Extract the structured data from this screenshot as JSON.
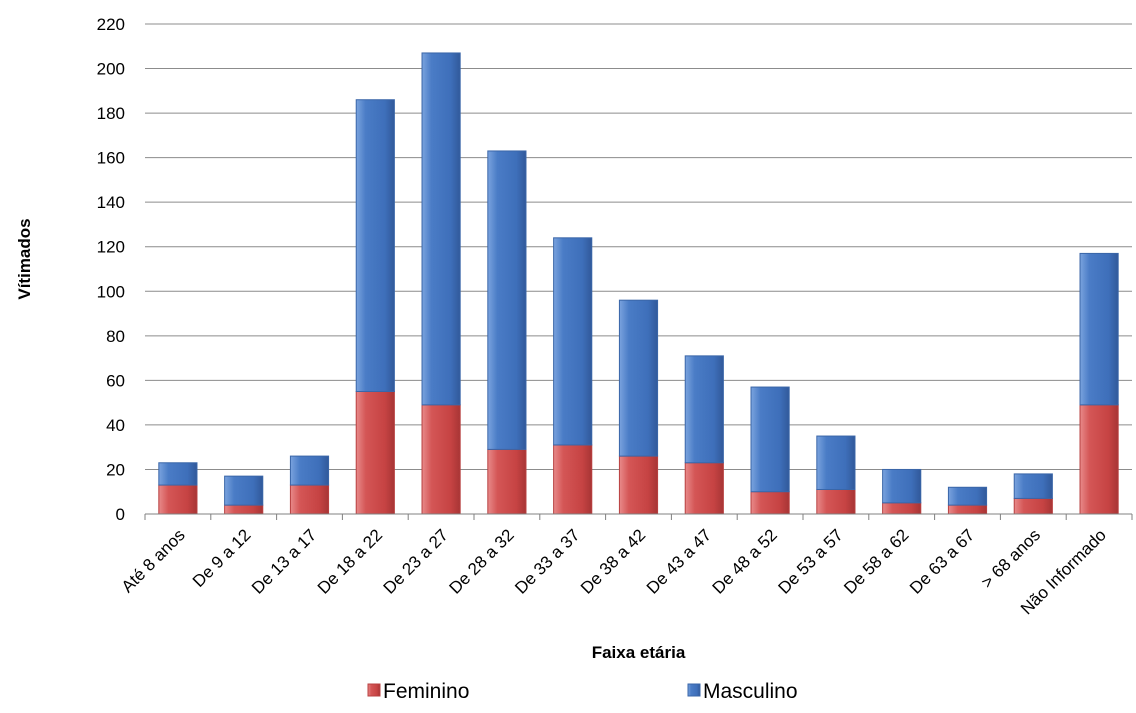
{
  "chart_data": {
    "type": "bar",
    "stacked": true,
    "title": "",
    "xlabel": "Faixa etária",
    "ylabel": "Vítimados",
    "ylim": [
      0,
      220
    ],
    "yticks": [
      0,
      20,
      40,
      60,
      80,
      100,
      120,
      140,
      160,
      180,
      200,
      220
    ],
    "grid": true,
    "legend_position": "bottom",
    "categories": [
      "Até 8 anos",
      "De 9 a 12",
      "De 13 a 17",
      "De 18 a 22",
      "De 23 a 27",
      "De 28 a 32",
      "De 33 a 37",
      "De 38 a 42",
      "De 43 a 47",
      "De 48 a 52",
      "De 53 a 57",
      "De 58 a 62",
      "De 63 a 67",
      "> 68 anos",
      "Não Informado"
    ],
    "series": [
      {
        "name": "Feminino",
        "color": "#d14a4a",
        "values": [
          13,
          4,
          13,
          55,
          49,
          29,
          31,
          26,
          23,
          10,
          11,
          5,
          4,
          7,
          49
        ]
      },
      {
        "name": "Masculino",
        "color": "#4576c1",
        "values": [
          10,
          13,
          13,
          131,
          158,
          134,
          93,
          70,
          48,
          47,
          24,
          15,
          8,
          11,
          68
        ]
      }
    ]
  }
}
